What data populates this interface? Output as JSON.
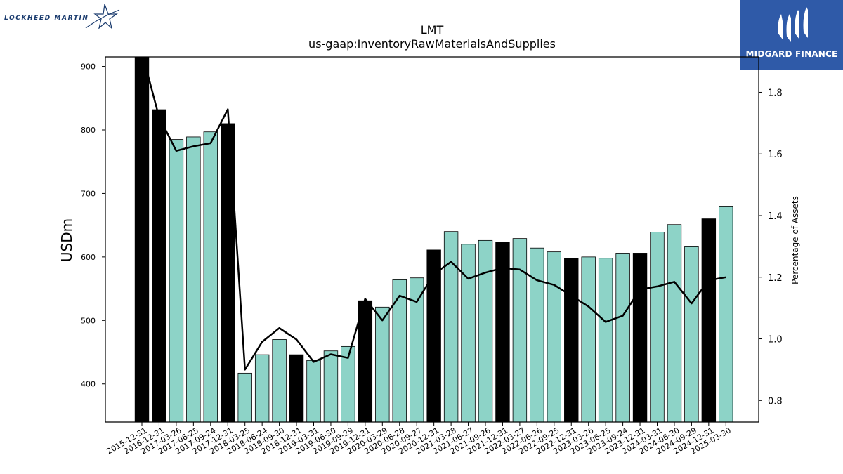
{
  "chart_data": {
    "type": "bar",
    "title": "LMT",
    "subtitle": "us-gaap:InventoryRawMaterialsAndSupplies",
    "ylabel": "USDm",
    "ylabel_right": "Percentage of Assets",
    "ylim": [
      340,
      915
    ],
    "ylim_right": [
      0.73,
      1.915
    ],
    "yticks": [
      400,
      500,
      600,
      700,
      800,
      900
    ],
    "yticks_right": [
      0.8,
      1.0,
      1.2,
      1.4,
      1.6,
      1.8
    ],
    "categories": [
      "2015-12-31",
      "2016-12-31",
      "2017-03-26",
      "2017-06-25",
      "2017-09-24",
      "2017-12-31",
      "2018-03-25",
      "2018-06-24",
      "2018-09-30",
      "2018-12-31",
      "2019-03-31",
      "2019-06-30",
      "2019-09-29",
      "2019-12-31",
      "2020-03-29",
      "2020-06-28",
      "2020-09-27",
      "2020-12-31",
      "2021-03-28",
      "2021-06-27",
      "2021-09-26",
      "2021-12-31",
      "2022-03-27",
      "2022-06-26",
      "2022-09-25",
      "2022-12-31",
      "2023-03-26",
      "2023-06-25",
      "2023-09-24",
      "2023-12-31",
      "2024-03-31",
      "2024-06-30",
      "2024-09-29",
      "2024-12-31",
      "2025-03-30"
    ],
    "series": [
      {
        "type": "bar",
        "axis": "left",
        "values": [
          915,
          832,
          785,
          789,
          797,
          810,
          417,
          446,
          470,
          446,
          437,
          452,
          459,
          531,
          521,
          564,
          567,
          611,
          640,
          620,
          626,
          623,
          629,
          614,
          608,
          598,
          600,
          598,
          606,
          606,
          639,
          651,
          616,
          660,
          679
        ]
      },
      {
        "type": "line",
        "axis": "right",
        "values": [
          1.93,
          1.72,
          1.61,
          1.625,
          1.635,
          1.745,
          0.9,
          0.99,
          1.035,
          0.998,
          0.925,
          0.95,
          0.938,
          1.13,
          1.06,
          1.14,
          1.12,
          1.21,
          1.25,
          1.195,
          1.215,
          1.23,
          1.225,
          1.19,
          1.175,
          1.14,
          1.105,
          1.055,
          1.075,
          1.16,
          1.17,
          1.185,
          1.115,
          1.19,
          1.2
        ]
      }
    ],
    "fiscal_year_end": [
      true,
      true,
      false,
      false,
      false,
      true,
      false,
      false,
      false,
      true,
      false,
      false,
      false,
      true,
      false,
      false,
      false,
      true,
      false,
      false,
      false,
      true,
      false,
      false,
      false,
      true,
      false,
      false,
      false,
      true,
      false,
      false,
      false,
      true,
      false
    ],
    "colors": {
      "annual_bar": "#000000",
      "quarter_bar": "#8dd3c7",
      "line": "#000000",
      "bar_edge": "#000000"
    }
  },
  "logos": {
    "left_text": "LOCKHEED MARTIN",
    "right_text": "MIDGARD FINANCE"
  }
}
